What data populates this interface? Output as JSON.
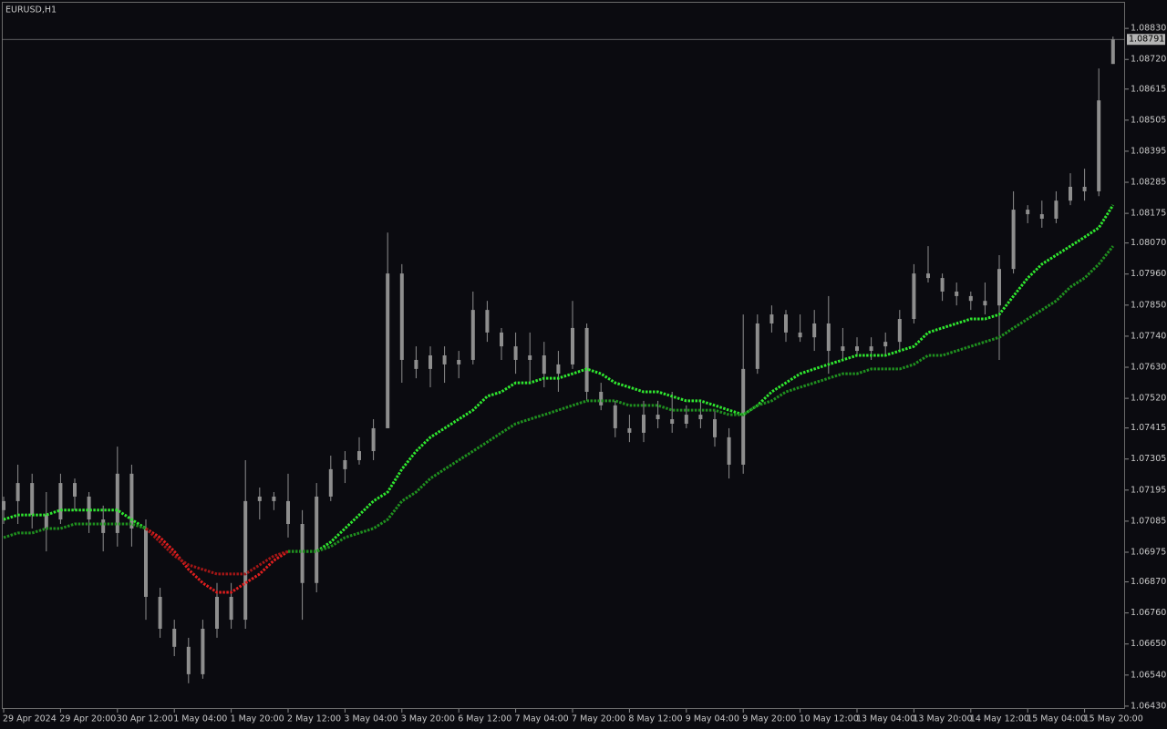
{
  "chart_data": {
    "type": "candlestick",
    "title": "EURUSD,H1",
    "categories": [
      "29 Apr 2024",
      null,
      null,
      null,
      "29 Apr 20:00",
      null,
      null,
      null,
      "30 Apr 12:00",
      null,
      null,
      null,
      "1 May 04:00",
      null,
      null,
      null,
      "1 May 20:00",
      null,
      null,
      null,
      "2 May 12:00",
      null,
      null,
      null,
      "3 May 04:00",
      null,
      null,
      null,
      "3 May 20:00",
      null,
      null,
      null,
      "6 May 12:00",
      null,
      null,
      null,
      "7 May 04:00",
      null,
      null,
      null,
      "7 May 20:00",
      null,
      null,
      null,
      "8 May 12:00",
      null,
      null,
      null,
      "9 May 04:00",
      null,
      null,
      null,
      "9 May 20:00",
      null,
      null,
      null,
      "10 May 12:00",
      null,
      null,
      null,
      "13 May 04:00",
      null,
      null,
      null,
      "13 May 20:00",
      null,
      null,
      null,
      "14 May 12:00",
      null,
      null,
      null,
      "15 May 04:00",
      null,
      null,
      null,
      "15 May 20:00",
      null,
      null
    ],
    "candles": {
      "color": "#8e8e8e",
      "open": [
        1.07124,
        1.07156,
        1.0722,
        1.07107,
        1.07091,
        1.0722,
        1.07172,
        1.07091,
        1.07043,
        1.07253,
        1.07059,
        1.06817,
        1.06704,
        1.0664,
        1.06543,
        1.06704,
        1.06817,
        1.06736,
        1.07156,
        1.07172,
        1.07156,
        1.07075,
        1.06866,
        1.07172,
        1.07269,
        1.07301,
        1.07333,
        1.07414,
        1.07962,
        1.07656,
        1.07624,
        1.07672,
        1.0764,
        1.07656,
        1.07833,
        1.07753,
        1.07704,
        1.07656,
        1.07672,
        1.07607,
        1.0764,
        1.07769,
        1.07543,
        1.07495,
        1.07414,
        1.07398,
        1.07462,
        1.07446,
        1.0743,
        1.07462,
        1.07446,
        1.07382,
        1.07285,
        1.07624,
        1.07785,
        1.07817,
        1.07753,
        1.07736,
        1.07785,
        1.07688,
        1.07704,
        1.07688,
        1.07704,
        1.0772,
        1.07801,
        1.07962,
        1.07946,
        1.07898,
        1.07882,
        1.07865,
        1.07849,
        1.07978,
        1.08188,
        1.08172,
        1.08156,
        1.0822,
        1.08269,
        1.08253,
        1.08704
      ],
      "high": [
        1.07172,
        1.07285,
        1.07253,
        1.07188,
        1.07253,
        1.07236,
        1.07188,
        1.0714,
        1.07349,
        1.07285,
        1.07091,
        1.06849,
        1.06736,
        1.06672,
        1.06736,
        1.06866,
        1.06866,
        1.07301,
        1.07204,
        1.07188,
        1.07253,
        1.07124,
        1.0722,
        1.07317,
        1.07333,
        1.07382,
        1.07446,
        1.08107,
        1.07995,
        1.07704,
        1.07704,
        1.07704,
        1.07688,
        1.07898,
        1.07865,
        1.07769,
        1.07753,
        1.07753,
        1.0772,
        1.07688,
        1.07865,
        1.07785,
        1.07575,
        1.07511,
        1.07462,
        1.07511,
        1.07511,
        1.07543,
        1.07495,
        1.07511,
        1.07478,
        1.07414,
        1.07817,
        1.07817,
        1.07849,
        1.07833,
        1.07817,
        1.07833,
        1.07882,
        1.07769,
        1.07736,
        1.07736,
        1.07753,
        1.07833,
        1.07995,
        1.08059,
        1.07962,
        1.0793,
        1.07898,
        1.0793,
        1.08027,
        1.08253,
        1.08204,
        1.0822,
        1.08253,
        1.08317,
        1.08333,
        1.08688,
        1.08801
      ],
      "low": [
        1.07075,
        1.07075,
        1.07059,
        1.06978,
        1.07075,
        1.07124,
        1.07043,
        1.06978,
        1.06995,
        1.06995,
        1.06736,
        1.06672,
        1.06607,
        1.06511,
        1.06527,
        1.06672,
        1.06704,
        1.06704,
        1.07091,
        1.07124,
        1.07027,
        1.06736,
        1.06833,
        1.07156,
        1.0722,
        1.07285,
        1.07301,
        1.07414,
        1.07575,
        1.07591,
        1.07559,
        1.07575,
        1.07591,
        1.0764,
        1.0772,
        1.07656,
        1.07607,
        1.07575,
        1.07559,
        1.07543,
        1.07624,
        1.07511,
        1.07478,
        1.07382,
        1.07365,
        1.07365,
        1.07414,
        1.07398,
        1.07414,
        1.07414,
        1.07349,
        1.07236,
        1.07253,
        1.07607,
        1.07753,
        1.0772,
        1.0772,
        1.07688,
        1.07607,
        1.07656,
        1.07672,
        1.07656,
        1.07672,
        1.07688,
        1.07785,
        1.0793,
        1.07865,
        1.07849,
        1.07833,
        1.07817,
        1.07656,
        1.07962,
        1.0814,
        1.08124,
        1.0814,
        1.08204,
        1.0822,
        1.08236,
        1.08704
      ],
      "close": [
        1.07156,
        1.0722,
        1.07107,
        1.07059,
        1.0722,
        1.07172,
        1.07091,
        1.07043,
        1.07253,
        1.07059,
        1.06817,
        1.06704,
        1.0664,
        1.06543,
        1.06704,
        1.06817,
        1.06736,
        1.07156,
        1.07172,
        1.07156,
        1.07075,
        1.06866,
        1.07172,
        1.07269,
        1.07301,
        1.07333,
        1.07414,
        1.07962,
        1.07656,
        1.07624,
        1.07672,
        1.0764,
        1.07656,
        1.07833,
        1.07753,
        1.07704,
        1.07656,
        1.07672,
        1.07607,
        1.0764,
        1.07769,
        1.07543,
        1.07495,
        1.07414,
        1.07398,
        1.07462,
        1.07446,
        1.0743,
        1.07462,
        1.07446,
        1.07382,
        1.07285,
        1.07624,
        1.07785,
        1.07817,
        1.07753,
        1.07736,
        1.07785,
        1.07688,
        1.07704,
        1.07688,
        1.07704,
        1.0772,
        1.07801,
        1.07962,
        1.07946,
        1.07898,
        1.07882,
        1.07865,
        1.07849,
        1.07978,
        1.08188,
        1.08172,
        1.08156,
        1.0822,
        1.08269,
        1.08253,
        1.08575,
        1.08791
      ]
    },
    "series": [
      {
        "color": "#2fe62f",
        "values": [
          1.07091,
          1.07107,
          1.07107,
          1.07107,
          1.07124,
          1.07124,
          1.07124,
          1.07124,
          1.07124,
          1.07091,
          1.07059,
          null,
          null,
          null,
          null,
          null,
          null,
          null,
          null,
          null,
          1.06978,
          1.06978,
          1.06978,
          1.07011,
          1.07059,
          1.07107,
          1.07156,
          1.07188,
          1.07269,
          1.07333,
          1.07382,
          1.07414,
          1.07446,
          1.07478,
          1.07527,
          1.07543,
          1.07575,
          1.07575,
          1.07591,
          1.07591,
          1.07607,
          1.07624,
          1.07607,
          1.07575,
          1.07559,
          1.07543,
          1.07543,
          1.07527,
          1.07511,
          1.07511,
          1.07495,
          1.07478,
          1.07462,
          1.07495,
          1.07543,
          1.07575,
          1.07607,
          1.07624,
          1.0764,
          1.07656,
          1.07672,
          1.07672,
          1.07672,
          1.07688,
          1.07704,
          1.07753,
          1.07769,
          1.07785,
          1.07801,
          1.07801,
          1.07817,
          1.07882,
          1.07946,
          1.07995,
          1.08027,
          1.08059,
          1.08091,
          1.08124,
          1.08204
        ]
      },
      {
        "color": "#e01e1e",
        "values": [
          null,
          null,
          null,
          null,
          null,
          null,
          null,
          null,
          null,
          null,
          1.07059,
          1.07027,
          1.06978,
          1.06914,
          1.06866,
          1.06833,
          1.06833,
          1.06866,
          1.06898,
          1.06946,
          1.06978,
          null,
          null,
          null,
          null,
          null,
          null,
          null,
          null,
          null,
          null,
          null,
          null,
          null,
          null,
          null,
          null,
          null,
          null,
          null,
          null,
          null,
          null,
          null,
          null,
          null,
          null,
          null,
          null,
          null,
          null,
          null,
          null,
          null,
          null,
          null,
          null,
          null,
          null,
          null,
          null,
          null,
          null,
          null,
          null,
          null,
          null,
          null,
          null,
          null,
          null,
          null,
          null,
          null,
          null,
          null,
          null,
          null,
          null
        ]
      },
      {
        "color": "#1f8f1f",
        "values": [
          1.07027,
          1.07043,
          1.07043,
          1.07059,
          1.07059,
          1.07075,
          1.07075,
          1.07075,
          1.07075,
          1.07075,
          1.07059,
          null,
          null,
          null,
          null,
          null,
          null,
          null,
          null,
          null,
          1.06978,
          1.06978,
          1.06978,
          1.06995,
          1.07027,
          1.07043,
          1.07059,
          1.07091,
          1.07156,
          1.07188,
          1.07236,
          1.07269,
          1.07301,
          1.07333,
          1.07365,
          1.07398,
          1.0743,
          1.07446,
          1.07462,
          1.07478,
          1.07495,
          1.07511,
          1.07511,
          1.07511,
          1.07495,
          1.07495,
          1.07495,
          1.07478,
          1.07478,
          1.07478,
          1.07478,
          1.07462,
          1.07462,
          1.07495,
          1.07511,
          1.07543,
          1.07559,
          1.07575,
          1.07591,
          1.07607,
          1.07607,
          1.07624,
          1.07624,
          1.07624,
          1.0764,
          1.07672,
          1.07672,
          1.07688,
          1.07704,
          1.0772,
          1.07736,
          1.07769,
          1.07801,
          1.07833,
          1.07865,
          1.07914,
          1.07946,
          1.07995,
          1.08059
        ]
      },
      {
        "color": "#a31616",
        "values": [
          null,
          null,
          null,
          null,
          null,
          null,
          null,
          null,
          null,
          null,
          1.07059,
          1.07011,
          1.06962,
          1.0693,
          1.06914,
          1.06898,
          1.06898,
          1.06898,
          1.0693,
          1.06962,
          1.06978,
          null,
          null,
          null,
          null,
          null,
          null,
          null,
          null,
          null,
          null,
          null,
          null,
          null,
          null,
          null,
          null,
          null,
          null,
          null,
          null,
          null,
          null,
          null,
          null,
          null,
          null,
          null,
          null,
          null,
          null,
          null,
          null,
          null,
          null,
          null,
          null,
          null,
          null,
          null,
          null,
          null,
          null,
          null,
          null,
          null,
          null,
          null,
          null,
          null,
          null,
          null,
          null,
          null,
          null,
          null,
          null,
          null,
          null
        ]
      }
    ],
    "last_price": 1.08791,
    "ylim": [
      1.0642,
      1.08924
    ],
    "yticks": [
      {
        "value": 1.0883,
        "label": "1.08830"
      },
      {
        "value": 1.0872,
        "label": "1.08720"
      },
      1.08615,
      1.08505,
      1.08395,
      1.08285,
      1.08175,
      {
        "value": 1.0807,
        "label": "1.08070"
      },
      {
        "value": 1.0796,
        "label": "1.07960"
      },
      {
        "value": 1.0785,
        "label": "1.07850"
      },
      {
        "value": 1.0774,
        "label": "1.07740"
      },
      {
        "value": 1.0763,
        "label": "1.07630"
      },
      {
        "value": 1.0752,
        "label": "1.07520"
      },
      1.07415,
      1.07305,
      1.07195,
      1.07085,
      1.06975,
      {
        "value": 1.0687,
        "label": "1.06870"
      },
      {
        "value": 1.0676,
        "label": "1.06760"
      },
      {
        "value": 1.0665,
        "label": "1.06650"
      },
      {
        "value": 1.0654,
        "label": "1.06540"
      },
      {
        "value": 1.0643,
        "label": "1.06430"
      }
    ]
  }
}
